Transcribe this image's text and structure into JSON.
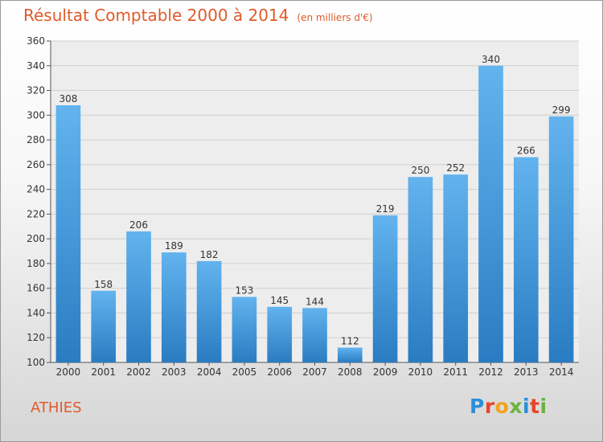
{
  "chart_data": {
    "type": "bar",
    "title": "Résultat Comptable 2000 à 2014",
    "subtitle": "(en milliers d'€)",
    "xlabel": "",
    "ylabel": "",
    "categories": [
      "2000",
      "2001",
      "2002",
      "2003",
      "2004",
      "2005",
      "2006",
      "2007",
      "2008",
      "2009",
      "2010",
      "2011",
      "2012",
      "2013",
      "2014"
    ],
    "values": [
      308,
      158,
      206,
      189,
      182,
      153,
      145,
      144,
      112,
      219,
      250,
      252,
      340,
      266,
      299
    ],
    "ylim": [
      100,
      360
    ],
    "yticks": [
      100,
      120,
      140,
      160,
      180,
      200,
      220,
      240,
      260,
      280,
      300,
      320,
      340,
      360
    ],
    "grid": true,
    "legend": "none",
    "bar_color": "#3a8fd6",
    "title_color": "#e05a2a"
  },
  "footer": {
    "commune": "ATHIES",
    "brand": "Proxiti"
  }
}
